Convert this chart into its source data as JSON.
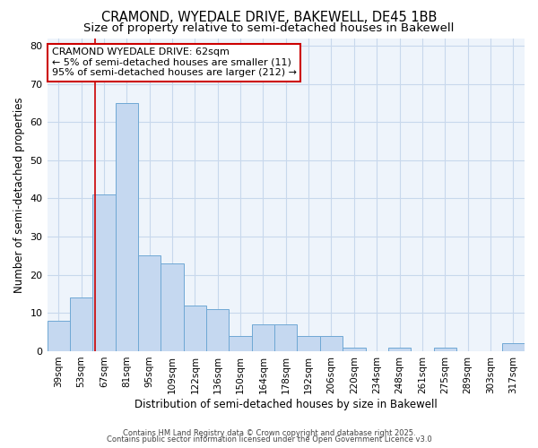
{
  "title1": "CRAMOND, WYEDALE DRIVE, BAKEWELL, DE45 1BB",
  "title2": "Size of property relative to semi-detached houses in Bakewell",
  "xlabel": "Distribution of semi-detached houses by size in Bakewell",
  "ylabel": "Number of semi-detached properties",
  "categories": [
    "39sqm",
    "53sqm",
    "67sqm",
    "81sqm",
    "95sqm",
    "109sqm",
    "122sqm",
    "136sqm",
    "150sqm",
    "164sqm",
    "178sqm",
    "192sqm",
    "206sqm",
    "220sqm",
    "234sqm",
    "248sqm",
    "261sqm",
    "275sqm",
    "289sqm",
    "303sqm",
    "317sqm"
  ],
  "values": [
    8,
    14,
    41,
    65,
    25,
    23,
    12,
    11,
    4,
    7,
    7,
    4,
    4,
    1,
    0,
    1,
    0,
    1,
    0,
    0,
    2
  ],
  "bar_color": "#c5d8f0",
  "bar_edge_color": "#6fa8d4",
  "grid_color": "#c8d8ec",
  "background_color": "#ffffff",
  "plot_bg_color": "#eef4fb",
  "red_line_x": 1.62,
  "annotation_text": "CRAMOND WYEDALE DRIVE: 62sqm\n← 5% of semi-detached houses are smaller (11)\n95% of semi-detached houses are larger (212) →",
  "annotation_box_color": "#ffffff",
  "annotation_border_color": "#cc0000",
  "footer1": "Contains HM Land Registry data © Crown copyright and database right 2025.",
  "footer2": "Contains public sector information licensed under the Open Government Licence v3.0",
  "ylim": [
    0,
    82
  ],
  "yticks": [
    0,
    10,
    20,
    30,
    40,
    50,
    60,
    70,
    80
  ],
  "red_line_color": "#cc0000",
  "title1_fontsize": 10.5,
  "title2_fontsize": 9.5,
  "annot_fontsize": 8.0,
  "xlabel_fontsize": 8.5,
  "ylabel_fontsize": 8.5,
  "xtick_fontsize": 7.5,
  "ytick_fontsize": 8.0
}
